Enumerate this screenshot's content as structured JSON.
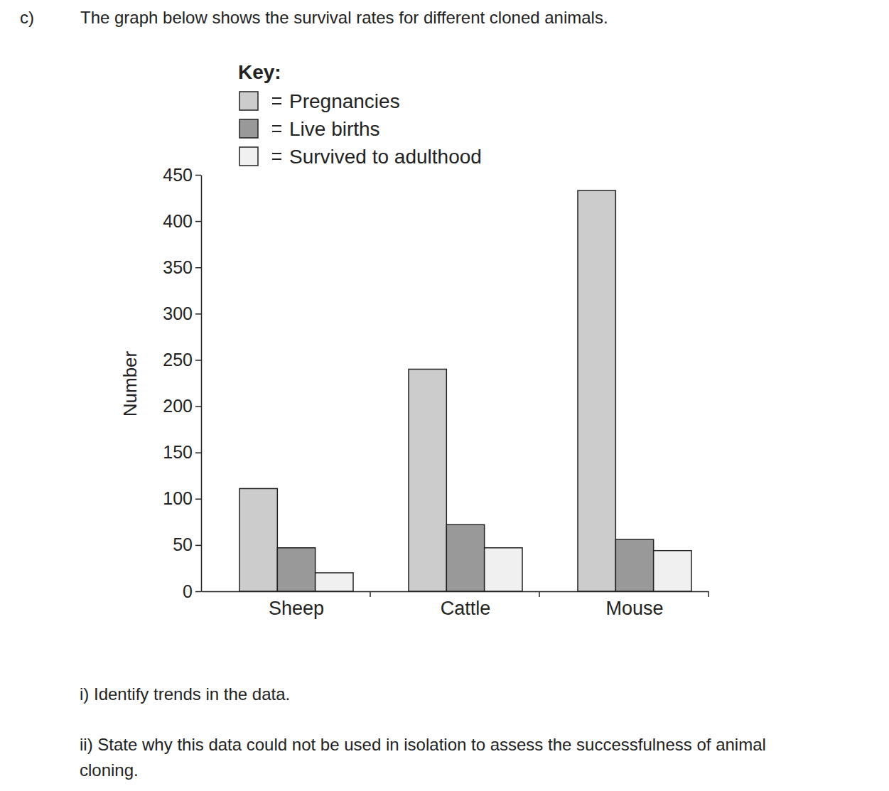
{
  "page": {
    "label": "c)",
    "intro": "The graph below shows the survival rates for different cloned animals.",
    "questions": [
      "i) Identify trends in the data.",
      "ii) State why this data could not be used in isolation to assess the successfulness of animal cloning."
    ]
  },
  "chart_data": {
    "type": "bar",
    "y_label": "Number",
    "legend_title": "Key:",
    "legend": "top-left",
    "categories": [
      "Sheep",
      "Cattle",
      "Mouse"
    ],
    "series": [
      {
        "name": "Pregnancies",
        "color": "#cccccc",
        "values": [
          111,
          240,
          433
        ]
      },
      {
        "name": "Live births",
        "color": "#999999",
        "values": [
          47,
          72,
          56
        ]
      },
      {
        "name": "Survived to adulthood",
        "color": "#f0f0f0",
        "values": [
          20,
          47,
          44
        ]
      }
    ],
    "ylim": [
      0,
      450
    ],
    "yticks": [
      0,
      50,
      100,
      150,
      200,
      250,
      300,
      350,
      400,
      450
    ],
    "grid": false
  }
}
